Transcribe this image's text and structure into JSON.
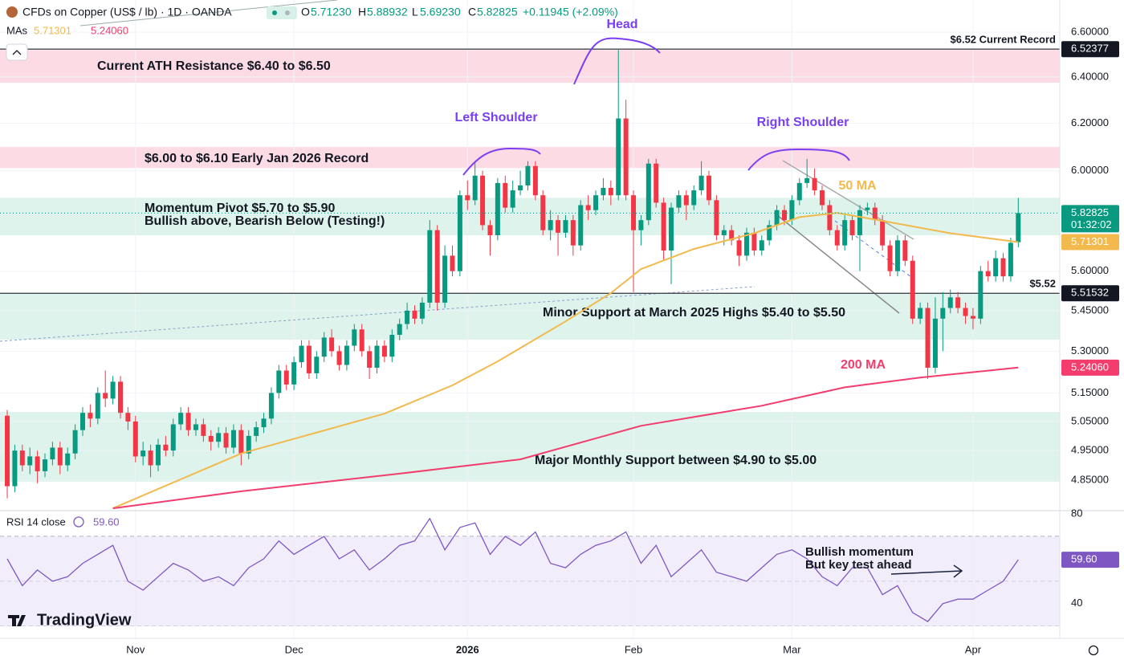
{
  "header": {
    "title": "CFDs on Copper (US$ / lb) · 1D · OANDA",
    "o_label": "O",
    "open": "5.71230",
    "h_label": "H",
    "high": "5.88932",
    "l_label": "L",
    "low": "5.69230",
    "c_label": "C",
    "close": "5.82825",
    "change": "+0.11945 (+2.09%)",
    "mas_label": "MAs",
    "ma50": "5.71301",
    "ma200": "5.24060"
  },
  "logo": "TradingView",
  "chart_data": {
    "type": "candlestick",
    "log_scale": true,
    "grid": true,
    "xlim": [
      -0.96,
      139.5
    ],
    "ylim": [
      4.76,
      6.748
    ],
    "xticks": [
      {
        "value": 17,
        "label": "Nov"
      },
      {
        "value": 38,
        "label": "Dec"
      },
      {
        "value": 61,
        "label": "2026"
      },
      {
        "value": 83,
        "label": "Feb"
      },
      {
        "value": 104,
        "label": "Mar"
      },
      {
        "value": 128,
        "label": "Apr"
      }
    ],
    "yticks": [
      {
        "value": 6.6,
        "label": "6.60000"
      },
      {
        "value": 6.4,
        "label": "6.40000"
      },
      {
        "value": 6.2,
        "label": "6.20000"
      },
      {
        "value": 6.0,
        "label": "6.00000"
      },
      {
        "value": 5.6,
        "label": "5.60000"
      },
      {
        "value": 5.45,
        "label": "5.45000"
      },
      {
        "value": 5.3,
        "label": "5.30000"
      },
      {
        "value": 5.15,
        "label": "5.15000"
      },
      {
        "value": 5.05,
        "label": "5.05000"
      },
      {
        "value": 4.95,
        "label": "4.95000"
      },
      {
        "value": 4.85,
        "label": "4.85000"
      }
    ],
    "up_color": "#089981",
    "down_color": "#f23645",
    "ohlc": [
      [
        5.07,
        5.09,
        4.79,
        4.83
      ],
      [
        4.83,
        4.97,
        4.81,
        4.95
      ],
      [
        4.95,
        4.97,
        4.88,
        4.9
      ],
      [
        4.9,
        4.96,
        4.87,
        4.93
      ],
      [
        4.93,
        4.95,
        4.84,
        4.88
      ],
      [
        4.88,
        4.94,
        4.86,
        4.92
      ],
      [
        4.92,
        4.98,
        4.9,
        4.96
      ],
      [
        4.96,
        4.98,
        4.87,
        4.9
      ],
      [
        4.9,
        4.96,
        4.88,
        4.94
      ],
      [
        4.94,
        5.04,
        4.92,
        5.02
      ],
      [
        5.02,
        5.1,
        5.0,
        5.08
      ],
      [
        5.08,
        5.11,
        5.03,
        5.06
      ],
      [
        5.06,
        5.17,
        5.04,
        5.15
      ],
      [
        5.15,
        5.23,
        5.1,
        5.13
      ],
      [
        5.13,
        5.21,
        5.11,
        5.19
      ],
      [
        5.19,
        5.21,
        5.06,
        5.08
      ],
      [
        5.08,
        5.1,
        5.02,
        5.05
      ],
      [
        5.05,
        5.07,
        4.91,
        4.93
      ],
      [
        4.93,
        4.98,
        4.9,
        4.95
      ],
      [
        4.95,
        4.97,
        4.86,
        4.9
      ],
      [
        4.9,
        4.99,
        4.88,
        4.97
      ],
      [
        4.97,
        5.0,
        4.93,
        4.95
      ],
      [
        4.95,
        5.06,
        4.93,
        5.04
      ],
      [
        5.04,
        5.1,
        5.02,
        5.08
      ],
      [
        5.08,
        5.1,
        5.0,
        5.02
      ],
      [
        5.02,
        5.06,
        5.0,
        5.04
      ],
      [
        5.04,
        5.06,
        4.98,
        5.0
      ],
      [
        5.0,
        5.02,
        4.95,
        4.98
      ],
      [
        4.98,
        5.03,
        4.96,
        5.01
      ],
      [
        5.01,
        5.03,
        4.94,
        4.96
      ],
      [
        4.96,
        5.04,
        4.94,
        5.02
      ],
      [
        5.02,
        5.04,
        4.9,
        4.94
      ],
      [
        4.94,
        5.02,
        4.92,
        5.0
      ],
      [
        5.0,
        5.05,
        4.98,
        5.03
      ],
      [
        5.03,
        5.08,
        5.01,
        5.06
      ],
      [
        5.06,
        5.17,
        5.04,
        5.15
      ],
      [
        5.15,
        5.25,
        5.13,
        5.23
      ],
      [
        5.23,
        5.25,
        5.16,
        5.18
      ],
      [
        5.18,
        5.28,
        5.16,
        5.26
      ],
      [
        5.26,
        5.34,
        5.24,
        5.32
      ],
      [
        5.32,
        5.34,
        5.2,
        5.22
      ],
      [
        5.22,
        5.3,
        5.2,
        5.28
      ],
      [
        5.28,
        5.37,
        5.26,
        5.35
      ],
      [
        5.35,
        5.38,
        5.28,
        5.3
      ],
      [
        5.3,
        5.32,
        5.23,
        5.25
      ],
      [
        5.25,
        5.34,
        5.23,
        5.32
      ],
      [
        5.32,
        5.4,
        5.3,
        5.38
      ],
      [
        5.38,
        5.4,
        5.28,
        5.3
      ],
      [
        5.3,
        5.32,
        5.2,
        5.24
      ],
      [
        5.24,
        5.34,
        5.22,
        5.32
      ],
      [
        5.32,
        5.34,
        5.26,
        5.28
      ],
      [
        5.28,
        5.38,
        5.26,
        5.36
      ],
      [
        5.36,
        5.42,
        5.34,
        5.4
      ],
      [
        5.4,
        5.48,
        5.38,
        5.45
      ],
      [
        5.45,
        5.47,
        5.4,
        5.42
      ],
      [
        5.42,
        5.5,
        5.4,
        5.48
      ],
      [
        5.48,
        5.8,
        5.46,
        5.76
      ],
      [
        5.76,
        5.78,
        5.45,
        5.48
      ],
      [
        5.48,
        5.7,
        5.46,
        5.66
      ],
      [
        5.66,
        5.7,
        5.58,
        5.6
      ],
      [
        5.6,
        5.92,
        5.58,
        5.9
      ],
      [
        5.9,
        5.96,
        5.84,
        5.88
      ],
      [
        5.88,
        6.04,
        5.86,
        5.98
      ],
      [
        5.98,
        6.0,
        5.76,
        5.78
      ],
      [
        5.78,
        5.8,
        5.66,
        5.74
      ],
      [
        5.74,
        5.97,
        5.72,
        5.95
      ],
      [
        5.95,
        5.98,
        5.83,
        5.85
      ],
      [
        5.85,
        5.96,
        5.83,
        5.92
      ],
      [
        5.92,
        6.0,
        5.9,
        5.94
      ],
      [
        5.94,
        6.04,
        5.92,
        6.02
      ],
      [
        6.02,
        6.04,
        5.88,
        5.9
      ],
      [
        5.9,
        5.92,
        5.74,
        5.76
      ],
      [
        5.76,
        5.84,
        5.72,
        5.8
      ],
      [
        5.8,
        5.82,
        5.66,
        5.75
      ],
      [
        5.75,
        5.82,
        5.73,
        5.8
      ],
      [
        5.8,
        5.82,
        5.66,
        5.7
      ],
      [
        5.7,
        5.88,
        5.68,
        5.86
      ],
      [
        5.86,
        5.9,
        5.8,
        5.84
      ],
      [
        5.84,
        5.92,
        5.82,
        5.9
      ],
      [
        5.9,
        5.97,
        5.88,
        5.93
      ],
      [
        5.93,
        5.96,
        5.86,
        5.9
      ],
      [
        5.9,
        6.52,
        5.88,
        6.22
      ],
      [
        6.22,
        6.3,
        5.88,
        5.9
      ],
      [
        5.9,
        5.92,
        5.52,
        5.76
      ],
      [
        5.76,
        5.82,
        5.7,
        5.8
      ],
      [
        5.8,
        6.05,
        5.78,
        6.03
      ],
      [
        6.03,
        6.05,
        5.85,
        5.87
      ],
      [
        5.87,
        5.89,
        5.64,
        5.68
      ],
      [
        5.68,
        5.87,
        5.55,
        5.85
      ],
      [
        5.85,
        5.92,
        5.83,
        5.9
      ],
      [
        5.9,
        5.92,
        5.8,
        5.86
      ],
      [
        5.86,
        5.94,
        5.84,
        5.92
      ],
      [
        5.92,
        6.04,
        5.9,
        5.98
      ],
      [
        5.98,
        6.0,
        5.86,
        5.88
      ],
      [
        5.88,
        5.9,
        5.72,
        5.74
      ],
      [
        5.74,
        5.78,
        5.7,
        5.76
      ],
      [
        5.76,
        5.78,
        5.7,
        5.72
      ],
      [
        5.72,
        5.74,
        5.62,
        5.66
      ],
      [
        5.66,
        5.77,
        5.64,
        5.75
      ],
      [
        5.75,
        5.77,
        5.66,
        5.68
      ],
      [
        5.68,
        5.74,
        5.66,
        5.72
      ],
      [
        5.72,
        5.8,
        5.7,
        5.78
      ],
      [
        5.78,
        5.86,
        5.76,
        5.84
      ],
      [
        5.84,
        5.86,
        5.78,
        5.8
      ],
      [
        5.8,
        5.9,
        5.78,
        5.88
      ],
      [
        5.88,
        5.97,
        5.86,
        5.95
      ],
      [
        5.95,
        6.05,
        5.93,
        5.97
      ],
      [
        5.97,
        6.01,
        5.9,
        5.92
      ],
      [
        5.92,
        5.94,
        5.84,
        5.86
      ],
      [
        5.86,
        5.88,
        5.74,
        5.76
      ],
      [
        5.76,
        5.78,
        5.68,
        5.7
      ],
      [
        5.7,
        5.82,
        5.68,
        5.8
      ],
      [
        5.8,
        5.82,
        5.72,
        5.74
      ],
      [
        5.74,
        5.86,
        5.6,
        5.84
      ],
      [
        5.84,
        5.87,
        5.82,
        5.85
      ],
      [
        5.85,
        5.87,
        5.78,
        5.8
      ],
      [
        5.8,
        5.82,
        5.68,
        5.7
      ],
      [
        5.7,
        5.72,
        5.58,
        5.6
      ],
      [
        5.6,
        5.74,
        5.58,
        5.72
      ],
      [
        5.72,
        5.74,
        5.62,
        5.64
      ],
      [
        5.64,
        5.66,
        5.4,
        5.42
      ],
      [
        5.42,
        5.48,
        5.4,
        5.46
      ],
      [
        5.46,
        5.48,
        5.2,
        5.24
      ],
      [
        5.24,
        5.5,
        5.22,
        5.42
      ],
      [
        5.42,
        5.52,
        5.3,
        5.46
      ],
      [
        5.46,
        5.53,
        5.44,
        5.5
      ],
      [
        5.5,
        5.52,
        5.44,
        5.46
      ],
      [
        5.46,
        5.48,
        5.4,
        5.43
      ],
      [
        5.43,
        5.46,
        5.38,
        5.42
      ],
      [
        5.42,
        5.62,
        5.4,
        5.6
      ],
      [
        5.6,
        5.64,
        5.56,
        5.58
      ],
      [
        5.58,
        5.68,
        5.56,
        5.65
      ],
      [
        5.65,
        5.67,
        5.56,
        5.58
      ],
      [
        5.58,
        5.73,
        5.56,
        5.71
      ],
      [
        5.7123,
        5.88932,
        5.6923,
        5.82825
      ]
    ],
    "ma": [
      {
        "name": "50 MA",
        "color": "#f2b94c",
        "x": [
          14,
          31,
          50,
          59,
          65,
          74,
          80,
          84,
          91,
          99,
          105,
          110,
          116,
          125,
          134
        ],
        "values": [
          4.757,
          4.94,
          5.077,
          5.177,
          5.263,
          5.41,
          5.516,
          5.608,
          5.686,
          5.748,
          5.812,
          5.829,
          5.797,
          5.748,
          5.713
        ]
      },
      {
        "name": "200 MA",
        "color": "#f23d6d",
        "x": [
          14,
          31,
          52,
          68,
          84,
          100,
          111,
          121,
          134
        ],
        "values": [
          4.757,
          4.813,
          4.872,
          4.92,
          5.035,
          5.105,
          5.17,
          5.205,
          5.2406
        ]
      }
    ],
    "zones": [
      {
        "from": 6.375,
        "to": 6.52,
        "color": "#fcd5e0",
        "label": [
          "Current ATH Resistance $6.40 to $6.50"
        ]
      },
      {
        "from": 6.012,
        "to": 6.099,
        "color": "#fcd5e0",
        "label": [
          "$6.00 to $6.10 Early Jan 2026 Record"
        ]
      },
      {
        "from": 5.74,
        "to": 5.89,
        "color": "#d7f1e8",
        "label": [
          "Momentum Pivot $5.70 to $5.90",
          "Bullish above, Bearish Below (Testing!)"
        ]
      },
      {
        "from": 5.342,
        "to": 5.513,
        "color": "#d7f1e8",
        "label": [
          "Minor Support at March 2025 Highs $5.40 to $5.50"
        ]
      },
      {
        "from": 4.845,
        "to": 5.083,
        "color": "#d7f1e8",
        "label": [
          "Major Monthly Support between $4.90 to $5.00"
        ]
      }
    ],
    "levels": [
      {
        "value": 6.52377,
        "text": "$6.52 Current Record"
      },
      {
        "value": 5.51532,
        "text": "$5.52"
      }
    ],
    "tags": [
      {
        "value": 6.52377,
        "color": "#131722"
      },
      {
        "value": 5.82825,
        "color": "#089981",
        "countdown": "01:32:02",
        "line": "dotted"
      },
      {
        "value": 5.71301,
        "color": "#f2b94c"
      },
      {
        "value": 5.51532,
        "color": "#131722"
      },
      {
        "value": 5.2406,
        "label": "5.24060",
        "color": "#f23d6d"
      }
    ],
    "annotations": [
      {
        "text": "Head"
      },
      {
        "text": "Left Shoulder"
      },
      {
        "text": "Right Shoulder"
      },
      {
        "text": "Bullish momentum"
      },
      {
        "text": "But key test ahead"
      }
    ]
  },
  "rsi": {
    "type": "line",
    "title": "RSI 14 close",
    "value_label": "59.60",
    "color": "#7e57c2",
    "ylim": [
      24.5,
      81.5
    ],
    "yticks": [
      80,
      40
    ],
    "levels": [
      70,
      50,
      30
    ],
    "x": [
      0,
      2,
      4,
      6,
      8,
      10,
      12,
      14,
      16,
      18,
      20,
      22,
      24,
      26,
      28,
      30,
      32,
      34,
      36,
      38,
      40,
      42,
      44,
      46,
      48,
      50,
      52,
      54,
      56,
      58,
      60,
      62,
      64,
      66,
      68,
      70,
      72,
      74,
      76,
      78,
      80,
      82,
      84,
      86,
      88,
      90,
      92,
      94,
      96,
      98,
      100,
      102,
      104,
      106,
      108,
      110,
      112,
      114,
      116,
      118,
      120,
      122,
      124,
      126,
      128,
      130,
      132,
      134
    ],
    "values": [
      60,
      48,
      55,
      50,
      52,
      58,
      62,
      66,
      50,
      46,
      52,
      58,
      55,
      50,
      52,
      48,
      56,
      60,
      68,
      62,
      66,
      70,
      60,
      64,
      55,
      60,
      66,
      68,
      78,
      64,
      74,
      76,
      62,
      70,
      66,
      72,
      58,
      56,
      62,
      66,
      68,
      72,
      58,
      66,
      52,
      58,
      64,
      54,
      52,
      50,
      56,
      62,
      64,
      60,
      52,
      48,
      56,
      56,
      44,
      48,
      36,
      32,
      40,
      42,
      42,
      46,
      50,
      59.6
    ]
  }
}
